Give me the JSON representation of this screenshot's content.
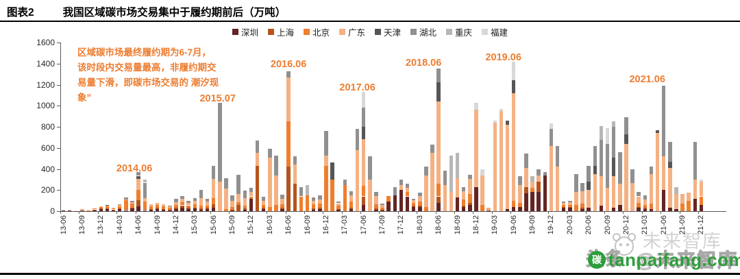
{
  "header": {
    "figure_label": "图表2",
    "title": "我国区域碳市场交易集中于履约期前后（万吨）"
  },
  "annotation_box": {
    "text": "区域碳市场最终履约期为6-7月，该时段内交易量最高，非履约期交易量下滑，即碳市场交易的 潮汐现象”",
    "color": "#ED7D31"
  },
  "chart_data": {
    "type": "bar",
    "stacked": true,
    "title": "我国区域碳市场交易集中于履约期前后（万吨）",
    "ylabel": "万吨",
    "ylim": [
      0,
      1600
    ],
    "yticks": [
      0,
      200,
      400,
      600,
      800,
      1000,
      1200,
      1400,
      1600
    ],
    "grid": false,
    "legend_position": "top",
    "x_label_every": 3,
    "months": [
      "13-06",
      "13-07",
      "13-08",
      "13-09",
      "13-10",
      "13-11",
      "13-12",
      "14-01",
      "14-02",
      "14-03",
      "14-04",
      "14-05",
      "14-06",
      "14-07",
      "14-08",
      "14-09",
      "14-10",
      "14-11",
      "14-12",
      "15-01",
      "15-02",
      "15-03",
      "15-04",
      "15-05",
      "15-06",
      "15-07",
      "15-08",
      "15-09",
      "15-10",
      "15-11",
      "15-12",
      "16-01",
      "16-02",
      "16-03",
      "16-04",
      "16-05",
      "16-06",
      "16-07",
      "16-08",
      "16-09",
      "16-10",
      "16-11",
      "16-12",
      "17-01",
      "17-02",
      "17-03",
      "17-04",
      "17-05",
      "17-06",
      "17-07",
      "17-08",
      "17-09",
      "17-10",
      "17-11",
      "17-12",
      "18-01",
      "18-02",
      "18-03",
      "18-04",
      "18-05",
      "18-06",
      "18-07",
      "18-08",
      "18-09",
      "18-10",
      "18-11",
      "18-12",
      "19-01",
      "19-02",
      "19-03",
      "19-04",
      "19-05",
      "19-06",
      "19-07",
      "19-08",
      "19-09",
      "19-10",
      "19-11",
      "19-12",
      "20-01",
      "20-02",
      "20-03",
      "20-04",
      "20-05",
      "20-06",
      "20-07",
      "20-08",
      "20-09",
      "20-10",
      "20-11",
      "20-12",
      "21-01",
      "21-02",
      "21-03",
      "21-04",
      "21-05",
      "21-06",
      "21-07",
      "21-08",
      "21-09",
      "21-10",
      "21-11",
      "21-12"
    ],
    "series": [
      {
        "key": "shenzhen",
        "name": "深圳",
        "color": "#632523",
        "values": [
          8,
          4,
          3,
          10,
          4,
          12,
          18,
          20,
          12,
          20,
          10,
          25,
          45,
          10,
          15,
          20,
          15,
          10,
          20,
          30,
          20,
          25,
          15,
          20,
          35,
          0,
          0,
          10,
          0,
          15,
          120,
          0,
          20,
          0,
          0,
          20,
          0,
          0,
          0,
          0,
          15,
          20,
          0,
          0,
          15,
          0,
          20,
          0,
          60,
          0,
          15,
          10,
          90,
          150,
          200,
          140,
          40,
          40,
          0,
          0,
          80,
          0,
          0,
          130,
          40,
          60,
          230,
          0,
          10,
          0,
          0,
          20,
          40,
          40,
          170,
          180,
          180,
          340,
          0,
          0,
          30,
          30,
          0,
          20,
          30,
          0,
          50,
          0,
          30,
          60,
          0,
          0,
          30,
          20,
          20,
          0,
          200,
          30,
          20,
          0,
          0,
          120,
          60
        ]
      },
      {
        "key": "shanghai",
        "name": "上海",
        "color": "#B4551D",
        "values": [
          0,
          0,
          0,
          0,
          0,
          4,
          6,
          8,
          4,
          6,
          8,
          10,
          60,
          10,
          5,
          10,
          5,
          5,
          10,
          25,
          10,
          10,
          10,
          10,
          30,
          0,
          0,
          5,
          60,
          10,
          0,
          430,
          10,
          0,
          0,
          10,
          420,
          260,
          0,
          0,
          10,
          10,
          0,
          0,
          5,
          0,
          10,
          0,
          80,
          0,
          10,
          5,
          0,
          0,
          0,
          0,
          10,
          10,
          0,
          0,
          60,
          0,
          0,
          0,
          10,
          20,
          0,
          0,
          0,
          0,
          0,
          0,
          0,
          0,
          60,
          0,
          100,
          0,
          0,
          0,
          10,
          10,
          0,
          10,
          0,
          0,
          0,
          0,
          0,
          0,
          0,
          0,
          10,
          10,
          0,
          0,
          0,
          0,
          0,
          0,
          0,
          0,
          0
        ]
      },
      {
        "key": "beijing",
        "name": "北京",
        "color": "#F07E2D",
        "values": [
          0,
          0,
          0,
          8,
          2,
          8,
          14,
          16,
          12,
          22,
          85,
          35,
          95,
          70,
          25,
          30,
          25,
          20,
          30,
          30,
          25,
          30,
          25,
          25,
          60,
          0,
          20,
          25,
          25,
          30,
          20,
          0,
          30,
          40,
          60,
          35,
          430,
          0,
          140,
          150,
          40,
          40,
          430,
          300,
          30,
          250,
          60,
          0,
          100,
          0,
          40,
          20,
          55,
          0,
          0,
          40,
          30,
          40,
          40,
          0,
          120,
          0,
          0,
          0,
          60,
          80,
          0,
          60,
          10,
          0,
          0,
          0,
          60,
          40,
          0,
          40,
          0,
          0,
          0,
          0,
          20,
          20,
          60,
          40,
          0,
          0,
          0,
          0,
          0,
          0,
          0,
          0,
          40,
          30,
          50,
          0,
          0,
          0,
          0,
          70,
          100,
          0,
          80
        ]
      },
      {
        "key": "guangdong",
        "name": "广东",
        "color": "#F5B183",
        "values": [
          0,
          0,
          0,
          0,
          0,
          0,
          8,
          8,
          6,
          8,
          10,
          15,
          105,
          35,
          20,
          20,
          20,
          15,
          25,
          30,
          25,
          30,
          75,
          35,
          180,
          280,
          195,
          60,
          80,
          70,
          40,
          120,
          40,
          470,
          280,
          50,
          420,
          180,
          0,
          0,
          35,
          40,
          100,
          0,
          25,
          0,
          60,
          580,
          440,
          300,
          80,
          25,
          0,
          0,
          50,
          40,
          25,
          55,
          300,
          550,
          780,
          250,
          180,
          180,
          80,
          145,
          730,
          280,
          10,
          840,
          950,
          800,
          1020,
          170,
          180,
          60,
          60,
          0,
          620,
          420,
          20,
          25,
          120,
          120,
          170,
          350,
          280,
          220,
          300,
          200,
          640,
          270,
          60,
          50,
          280,
          740,
          320,
          380,
          140,
          90,
          75,
          180,
          140
        ]
      },
      {
        "key": "tianjin",
        "name": "天津",
        "color": "#565656",
        "values": [
          0,
          0,
          0,
          0,
          0,
          0,
          0,
          4,
          0,
          0,
          0,
          0,
          30,
          0,
          0,
          0,
          0,
          0,
          0,
          0,
          0,
          0,
          0,
          0,
          0,
          0,
          0,
          0,
          0,
          0,
          0,
          0,
          0,
          0,
          0,
          0,
          0,
          0,
          0,
          0,
          0,
          0,
          0,
          160,
          0,
          0,
          0,
          0,
          120,
          0,
          0,
          0,
          0,
          0,
          0,
          0,
          0,
          0,
          0,
          0,
          180,
          0,
          0,
          0,
          0,
          0,
          0,
          0,
          0,
          0,
          0,
          40,
          120,
          0,
          0,
          0,
          0,
          0,
          0,
          0,
          0,
          0,
          0,
          0,
          80,
          80,
          0,
          0,
          180,
          0,
          90,
          0,
          0,
          0,
          0,
          30,
          0,
          60,
          0,
          0,
          0,
          0,
          0
        ]
      },
      {
        "key": "hubei",
        "name": "湖北",
        "color": "#909090",
        "values": [
          0,
          0,
          0,
          0,
          0,
          0,
          0,
          0,
          0,
          10,
          18,
          10,
          35,
          145,
          0,
          0,
          0,
          5,
          30,
          30,
          15,
          30,
          80,
          25,
          125,
          750,
          95,
          50,
          180,
          70,
          40,
          120,
          40,
          80,
          190,
          40,
          60,
          80,
          90,
          0,
          30,
          40,
          230,
          0,
          15,
          50,
          40,
          200,
          180,
          220,
          40,
          10,
          0,
          80,
          50,
          40,
          15,
          30,
          80,
          80,
          130,
          135,
          0,
          0,
          40,
          40,
          0,
          0,
          0,
          0,
          0,
          0,
          0,
          80,
          135,
          0,
          55,
          30,
          160,
          195,
          10,
          10,
          170,
          80,
          150,
          190,
          350,
          420,
          290,
          300,
          160,
          130,
          45,
          40,
          70,
          0,
          670,
          190,
          0,
          0,
          0,
          360,
          0
        ]
      },
      {
        "key": "chongqing",
        "name": "重庆",
        "color": "#B7B7B7",
        "values": [
          0,
          0,
          0,
          0,
          0,
          0,
          0,
          0,
          0,
          0,
          0,
          0,
          0,
          30,
          0,
          0,
          0,
          0,
          0,
          0,
          0,
          0,
          0,
          0,
          0,
          0,
          0,
          0,
          0,
          0,
          0,
          0,
          0,
          0,
          0,
          0,
          0,
          0,
          0,
          95,
          0,
          0,
          0,
          0,
          0,
          0,
          0,
          0,
          0,
          0,
          0,
          0,
          0,
          0,
          0,
          0,
          0,
          0,
          0,
          0,
          0,
          0,
          350,
          245,
          0,
          0,
          0,
          0,
          0,
          0,
          0,
          0,
          0,
          0,
          0,
          50,
          0,
          0,
          0,
          0,
          0,
          0,
          0,
          0,
          0,
          0,
          130,
          0,
          50,
          0,
          0,
          0,
          0,
          0,
          0,
          0,
          0,
          0,
          70,
          0,
          0,
          0,
          0
        ]
      },
      {
        "key": "fujian",
        "name": "福建",
        "color": "#D8D8D8",
        "values": [
          0,
          0,
          0,
          0,
          0,
          0,
          0,
          0,
          0,
          0,
          0,
          0,
          0,
          0,
          0,
          0,
          0,
          0,
          0,
          0,
          0,
          0,
          0,
          0,
          0,
          0,
          0,
          0,
          0,
          0,
          0,
          0,
          0,
          0,
          0,
          0,
          0,
          0,
          0,
          0,
          0,
          0,
          0,
          0,
          0,
          0,
          0,
          0,
          150,
          0,
          0,
          0,
          0,
          0,
          0,
          0,
          0,
          0,
          0,
          0,
          0,
          0,
          0,
          0,
          0,
          0,
          70,
          55,
          0,
          20,
          20,
          0,
          180,
          0,
          0,
          0,
          0,
          0,
          50,
          0,
          0,
          0,
          0,
          0,
          0,
          0,
          0,
          150,
          0,
          0,
          0,
          0,
          0,
          0,
          0,
          0,
          0,
          0,
          0,
          0,
          0,
          0,
          20
        ]
      }
    ],
    "peak_annotations": [
      {
        "text": "2014.06",
        "month_index": 12,
        "y": 238,
        "dx": -6
      },
      {
        "text": "2015.07",
        "month_index": 25,
        "y": 136,
        "dx": -3
      },
      {
        "text": "2016.06",
        "month_index": 36,
        "y": 86,
        "dx": 0
      },
      {
        "text": "2017.06",
        "month_index": 48,
        "y": 120,
        "dx": -9
      },
      {
        "text": "2018.06",
        "month_index": 60,
        "y": 84,
        "dx": -22
      },
      {
        "text": "2019.06",
        "month_index": 72,
        "y": 76,
        "dx": -15
      },
      {
        "text": "2021.06",
        "month_index": 96,
        "y": 108,
        "dx": -24
      }
    ]
  },
  "watermarks": {
    "brand_large": "未来智库",
    "overlay_left": "头条",
    "overlay_right": "@未来智库",
    "site": "tanpaifang.com",
    "site_logo_char": "碳",
    "site_color": "#2E9E3B"
  }
}
